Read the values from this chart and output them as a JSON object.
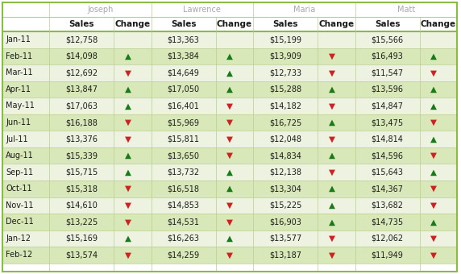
{
  "persons": [
    "Joseph",
    "Lawrence",
    "Maria",
    "Matt"
  ],
  "months": [
    "Jan-11",
    "Feb-11",
    "Mar-11",
    "Apr-11",
    "May-11",
    "Jun-11",
    "Jul-11",
    "Aug-11",
    "Sep-11",
    "Oct-11",
    "Nov-11",
    "Dec-11",
    "Jan-12",
    "Feb-12"
  ],
  "sales": {
    "Joseph": [
      12758,
      14098,
      12692,
      13847,
      17063,
      16188,
      13376,
      15339,
      15715,
      15318,
      14610,
      13225,
      15169,
      13574
    ],
    "Lawrence": [
      13363,
      13384,
      14649,
      17050,
      16401,
      15969,
      15811,
      13650,
      13732,
      16518,
      14853,
      14531,
      16263,
      14259
    ],
    "Maria": [
      15199,
      13909,
      12733,
      15288,
      14182,
      16725,
      12048,
      14834,
      12138,
      13304,
      15225,
      16903,
      13577,
      13187
    ],
    "Matt": [
      15566,
      16493,
      11547,
      13596,
      14847,
      13475,
      14814,
      14596,
      15643,
      14367,
      13682,
      14735,
      12062,
      11949
    ]
  },
  "changes": {
    "Joseph": [
      null,
      1,
      -1,
      1,
      1,
      -1,
      -1,
      1,
      1,
      -1,
      -1,
      -1,
      1,
      -1
    ],
    "Lawrence": [
      null,
      1,
      1,
      1,
      -1,
      -1,
      -1,
      -1,
      1,
      1,
      -1,
      -1,
      1,
      -1
    ],
    "Maria": [
      null,
      -1,
      -1,
      1,
      -1,
      1,
      -1,
      1,
      -1,
      1,
      1,
      1,
      -1,
      -1
    ],
    "Matt": [
      null,
      1,
      -1,
      1,
      1,
      -1,
      1,
      -1,
      1,
      -1,
      -1,
      1,
      -1,
      -1
    ]
  },
  "bg_header": "#ffffff",
  "bg_row_even": "#edf3e0",
  "bg_row_odd": "#d9e8b8",
  "person_color": "#a8a8a8",
  "col_header_color": "#1a1a1a",
  "border_color_outer": "#8bba45",
  "border_color_inner": "#b8ce90",
  "up_color": "#1a7a1a",
  "down_color": "#cc2222",
  "text_color": "#1a1a1a",
  "fig_width": 5.72,
  "fig_height": 3.4
}
